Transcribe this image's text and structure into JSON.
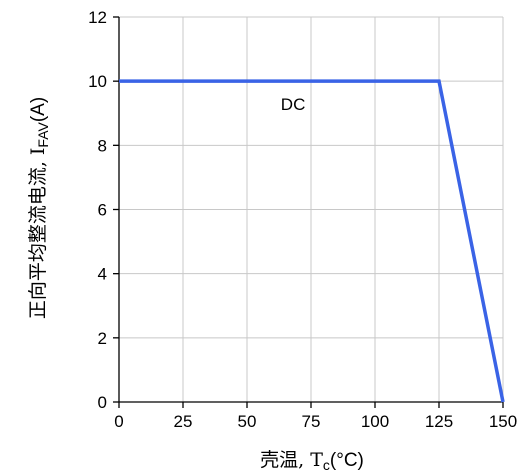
{
  "chart_data": {
    "type": "line",
    "xlabel": {
      "prefix": "壳温, T",
      "sub": "c",
      "suffix": "(°C)"
    },
    "ylabel": {
      "prefix": "正向平均整流电流, I",
      "sub": "FAV",
      "suffix": "(A)"
    },
    "xlim": [
      0,
      150
    ],
    "ylim": [
      0,
      12
    ],
    "xticks": [
      0,
      25,
      50,
      75,
      100,
      125,
      150
    ],
    "yticks": [
      0,
      2,
      4,
      6,
      8,
      10,
      12
    ],
    "grid": true,
    "colors": {
      "line": "#3a63e6",
      "grid": "#c8c8c8",
      "axis": "#000000"
    },
    "series": [
      {
        "name": "DC",
        "x": [
          0,
          125,
          150
        ],
        "y": [
          10,
          10,
          0
        ]
      }
    ],
    "annotations": [
      {
        "text": "DC",
        "x": 68,
        "y": 9.1
      }
    ]
  }
}
